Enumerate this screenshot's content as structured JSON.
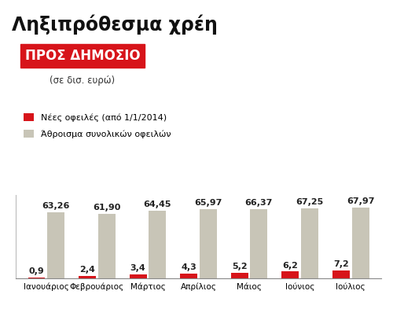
{
  "chart_data": {
    "type": "bar",
    "title": "Ληξιπρόθεσμα χρέη",
    "subtitle": "ΠΡΟΣ ΔΗΜΟΣΙΟ",
    "annotations": [
      "(σε δισ. ευρώ)"
    ],
    "categories": [
      "Ιανουάριος",
      "Φεβρουάριος",
      "Μάρτιος",
      "Απρίλιος",
      "Μάιος",
      "Ιούνιος",
      "Ιούλιος"
    ],
    "series": [
      {
        "name": "Νέες οφειλές (από 1/1/2014)",
        "color": "#d7141a",
        "values": [
          0.9,
          2.4,
          3.4,
          4.3,
          5.2,
          6.2,
          7.2
        ],
        "value_labels": [
          "0,9",
          "2,4",
          "3,4",
          "4,3",
          "5,2",
          "6,2",
          "7,2"
        ]
      },
      {
        "name": "Άθροισμα συνολικών οφειλών",
        "color": "#c8c5b7",
        "values": [
          63.26,
          61.9,
          64.45,
          65.97,
          66.37,
          67.25,
          67.97
        ],
        "value_labels": [
          "63,26",
          "61,90",
          "64,45",
          "65,97",
          "66,37",
          "67,25",
          "67,97"
        ]
      }
    ],
    "ylim": [
      0,
      80
    ],
    "data_labels": true,
    "tick_labels": "x",
    "legend": "upper left"
  }
}
